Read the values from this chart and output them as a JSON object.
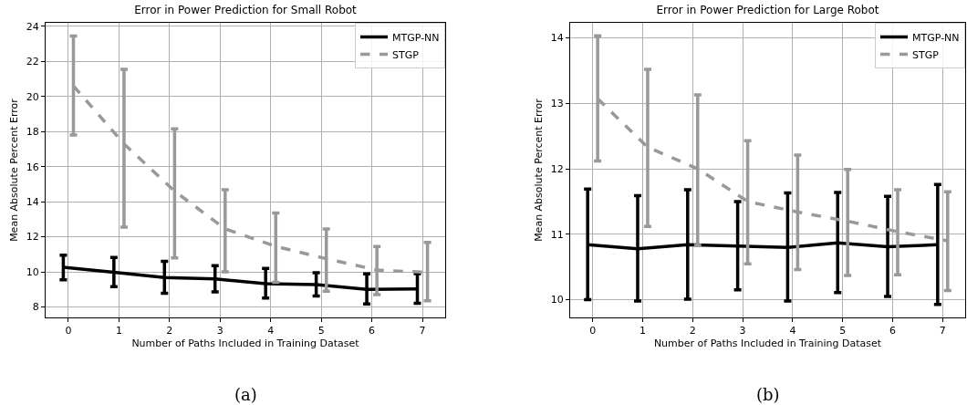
{
  "chart_data": [
    {
      "type": "line",
      "title": "Error in Power Prediction for Small Robot",
      "xlabel": "Number of Paths Included in Training Dataset",
      "ylabel": "Mean Absolute Percent Error",
      "annotations": [
        "(a)"
      ],
      "xlim": [
        -0.45,
        7.45
      ],
      "xticks": [
        0,
        1,
        2,
        3,
        4,
        5,
        6,
        7
      ],
      "ylim": [
        7.4,
        24.2
      ],
      "yticks": [
        8,
        10,
        12,
        14,
        16,
        18,
        20,
        22,
        24
      ],
      "grid": true,
      "legend": "top right",
      "marker": "none",
      "series": [
        {
          "name": "MTGP-NN",
          "color": "#000000",
          "line_style": "solid",
          "x": [
            -0.1,
            0.9,
            1.9,
            2.9,
            3.9,
            4.9,
            5.9,
            6.9
          ],
          "values": [
            10.26,
            9.97,
            9.67,
            9.6,
            9.32,
            9.27,
            9.0,
            9.02
          ],
          "errors": [
            [
              9.55,
              10.95
            ],
            [
              9.15,
              10.82
            ],
            [
              8.78,
              10.6
            ],
            [
              8.85,
              10.35
            ],
            [
              8.5,
              10.2
            ],
            [
              8.62,
              9.95
            ],
            [
              8.17,
              9.88
            ],
            [
              8.2,
              9.9
            ]
          ]
        },
        {
          "name": "STGP",
          "color": "#999999",
          "line_style": "dashed",
          "x": [
            0.1,
            1.1,
            2.1,
            3.1,
            4.1,
            5.1,
            6.1,
            7.1
          ],
          "values": [
            20.6,
            17.3,
            14.6,
            12.45,
            11.45,
            10.75,
            10.1,
            9.97
          ],
          "errors": [
            [
              17.8,
              23.45
            ],
            [
              12.55,
              21.55
            ],
            [
              10.8,
              18.15
            ],
            [
              10.0,
              14.68
            ],
            [
              9.4,
              13.35
            ],
            [
              8.9,
              12.45
            ],
            [
              8.7,
              11.45
            ],
            [
              8.35,
              11.68
            ]
          ]
        }
      ]
    },
    {
      "type": "line",
      "title": "Error in Power Prediction for Large Robot",
      "xlabel": "Number of Paths Included in Training Dataset",
      "ylabel": "Mean Absolute Percent Error",
      "annotations": [
        "(b)"
      ],
      "xlim": [
        -0.45,
        7.45
      ],
      "xticks": [
        0,
        1,
        2,
        3,
        4,
        5,
        6,
        7
      ],
      "ylim": [
        9.73,
        14.23
      ],
      "yticks": [
        10,
        11,
        12,
        13,
        14
      ],
      "grid": true,
      "legend": "top right",
      "marker": "none",
      "series": [
        {
          "name": "MTGP-NN",
          "color": "#000000",
          "line_style": "solid",
          "x": [
            -0.1,
            0.9,
            1.9,
            2.9,
            3.9,
            4.9,
            5.9,
            6.9
          ],
          "values": [
            10.84,
            10.78,
            10.84,
            10.82,
            10.8,
            10.87,
            10.81,
            10.84
          ],
          "errors": [
            [
              10.0,
              11.69
            ],
            [
              9.98,
              11.59
            ],
            [
              10.01,
              11.68
            ],
            [
              10.15,
              11.5
            ],
            [
              9.98,
              11.63
            ],
            [
              10.11,
              11.64
            ],
            [
              10.05,
              11.58
            ],
            [
              9.93,
              11.76
            ]
          ]
        },
        {
          "name": "STGP",
          "color": "#999999",
          "line_style": "dashed",
          "x": [
            0.1,
            1.1,
            2.1,
            3.1,
            4.1,
            5.1,
            6.1,
            7.1
          ],
          "values": [
            13.07,
            12.33,
            12.0,
            11.5,
            11.34,
            11.2,
            11.04,
            10.9
          ],
          "errors": [
            [
              12.12,
              14.03
            ],
            [
              11.12,
              13.52
            ],
            [
              10.83,
              13.13
            ],
            [
              10.55,
              12.43
            ],
            [
              10.46,
              12.21
            ],
            [
              10.37,
              11.99
            ],
            [
              10.38,
              11.68
            ],
            [
              10.14,
              11.65
            ]
          ]
        }
      ]
    }
  ]
}
